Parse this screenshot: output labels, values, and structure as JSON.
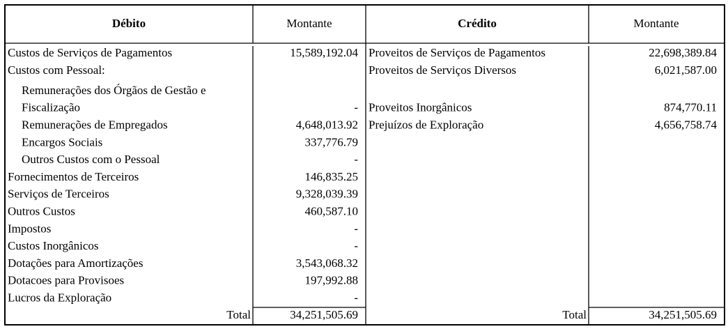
{
  "header": {
    "debit": "Débito",
    "debit_amount": "Montante",
    "credit": "Crédito",
    "credit_amount": "Montante"
  },
  "rows": [
    {
      "debit": "Custos de Serviços de Pagamentos",
      "debit_amount": "15,589,192.04",
      "credit": "Proveitos de Serviços de Pagamentos",
      "credit_amount": "22,698,389.84"
    },
    {
      "debit": "Custos com Pessoal:",
      "credit": "Proveitos de Serviços Diversos",
      "credit_amount": "6,021,587.00"
    },
    {
      "debit": "Remunerações dos Órgãos de Gestão e",
      "level": 1
    },
    {
      "debit": "Fiscalização",
      "level": 1,
      "debit_amount": "-",
      "credit": "Proveitos Inorgânicos",
      "credit_amount": "874,770.11"
    },
    {
      "debit": "Remunerações de Empregados",
      "level": 1,
      "debit_amount": "4,648,013.92",
      "credit": "Prejuízos de Exploração",
      "credit_amount": "4,656,758.74"
    },
    {
      "debit": "Encargos Sociais",
      "level": 1,
      "debit_amount": "337,776.79"
    },
    {
      "debit": "Outros Custos com o Pessoal",
      "level": 1,
      "debit_amount": "-"
    },
    {
      "debit": "Fornecimentos de Terceiros",
      "debit_amount": "146,835.25"
    },
    {
      "debit": "Serviços de Terceiros",
      "debit_amount": "9,328,039.39"
    },
    {
      "debit": "Outros Custos",
      "debit_amount": "460,587.10"
    },
    {
      "debit": "Impostos",
      "debit_amount": "-"
    },
    {
      "debit": "Custos Inorgânicos",
      "debit_amount": "-"
    },
    {
      "debit": "Dotações para Amortizações",
      "debit_amount": "3,543,068.32"
    },
    {
      "debit": "Dotacoes para Provisoes",
      "debit_amount": "197,992.88"
    },
    {
      "debit": "Lucros da Exploração",
      "debit_amount": "-"
    }
  ],
  "total": {
    "debit_label": "Total",
    "debit_amount": "34,251,505.69",
    "credit_label": "Total",
    "credit_amount": "34,251,505.69"
  }
}
